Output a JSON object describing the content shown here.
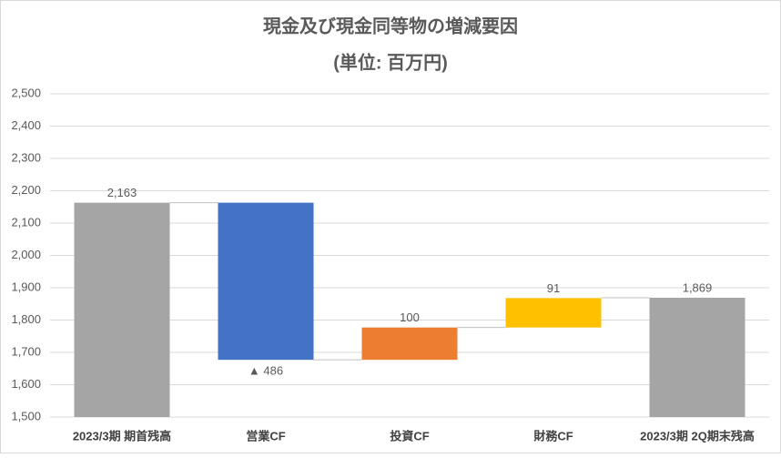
{
  "chart_data": {
    "type": "waterfall",
    "title": "現金及び現金同等物の増減要因",
    "subtitle": "(単位: 百万円)",
    "categories": [
      "2023/3期 期首残高",
      "営業CF",
      "投資CF",
      "財務CF",
      "2023/3期 2Q期末残高"
    ],
    "measure": [
      "absolute",
      "relative",
      "relative",
      "relative",
      "absolute"
    ],
    "values": [
      2163,
      -486,
      100,
      91,
      1869
    ],
    "value_labels": [
      "2,163",
      "▲ 486",
      "100",
      "91",
      "1,869"
    ],
    "colors": [
      "#a5a5a5",
      "#4472c4",
      "#ed7d31",
      "#ffc000",
      "#a5a5a5"
    ],
    "ylim": [
      1500,
      2500
    ],
    "yticks": [
      {
        "value": 1500,
        "label": "1,500"
      },
      {
        "value": 1600,
        "label": "1,600"
      },
      {
        "value": 1700,
        "label": "1,700"
      },
      {
        "value": 1800,
        "label": "1,800"
      },
      {
        "value": 1900,
        "label": "1,900"
      },
      {
        "value": 2000,
        "label": "2,000"
      },
      {
        "value": 2100,
        "label": "2,100"
      },
      {
        "value": 2200,
        "label": "2,200"
      },
      {
        "value": 2300,
        "label": "2,300"
      },
      {
        "value": 2400,
        "label": "2,400"
      },
      {
        "value": 2500,
        "label": "2,500"
      }
    ],
    "grid": true
  }
}
